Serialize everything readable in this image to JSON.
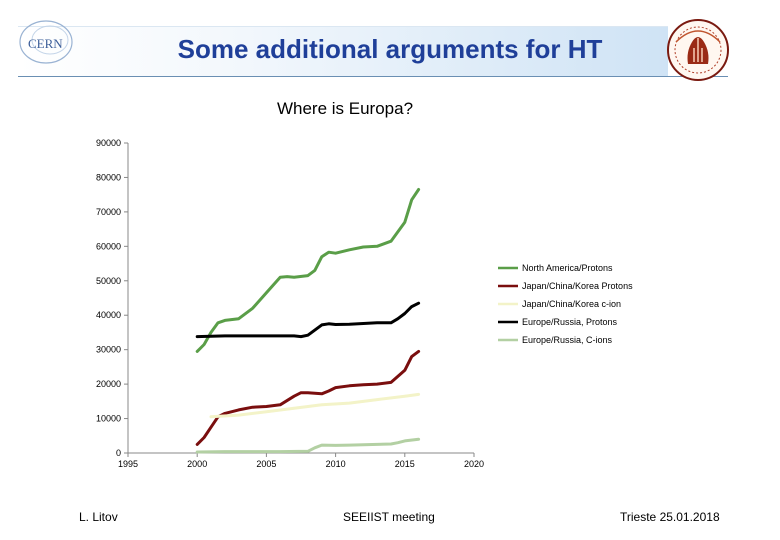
{
  "header": {
    "title": "Some additional arguments for HT",
    "left_logo_text": "CERN",
    "right_logo": "university-seal"
  },
  "footer": {
    "author": "L. Litov",
    "event": "SEEIIST meeting",
    "place_date": "Trieste 25.01.2018"
  },
  "colors": {
    "title": "#1f3f99",
    "north_america": "#5a9e48",
    "japan_protons": "#7a0e0e",
    "japan_cions": "#f3f3c8",
    "europe_protons": "#000000",
    "europe_cions": "#b3d0a3"
  },
  "chart_data": {
    "type": "line",
    "title": "Where is Europa?",
    "xlabel": "",
    "ylabel": "",
    "xlim": [
      1995,
      2020
    ],
    "ylim": [
      0,
      90000
    ],
    "x_ticks": [
      1995,
      2000,
      2005,
      2010,
      2015,
      2020
    ],
    "y_ticks": [
      0,
      10000,
      20000,
      30000,
      40000,
      50000,
      60000,
      70000,
      80000,
      90000
    ],
    "legend_position": "right",
    "grid": false,
    "series": [
      {
        "name": "North America/Protons",
        "color": "#5a9e48",
        "x": [
          2000,
          2000.5,
          2001,
          2001.5,
          2002,
          2003,
          2004,
          2005,
          2006,
          2006.5,
          2007,
          2008,
          2008.5,
          2009,
          2009.5,
          2010,
          2011,
          2012,
          2013,
          2014,
          2015,
          2015.5,
          2016
        ],
        "y": [
          29500,
          31500,
          35000,
          37800,
          38500,
          39000,
          42000,
          46500,
          51000,
          51200,
          51000,
          51500,
          53000,
          57000,
          58300,
          58000,
          59000,
          59800,
          60000,
          61500,
          67000,
          73500,
          76500
        ]
      },
      {
        "name": "Japan/China/Korea Protons",
        "color": "#7a0e0e",
        "x": [
          2000,
          2000.5,
          2001,
          2001.5,
          2002,
          2003,
          2004,
          2005,
          2006,
          2007,
          2007.5,
          2008,
          2009,
          2009.5,
          2010,
          2011,
          2012,
          2013,
          2014,
          2015,
          2015.5,
          2016
        ],
        "y": [
          2500,
          4500,
          7500,
          10500,
          11500,
          12500,
          13300,
          13500,
          14000,
          16500,
          17500,
          17500,
          17200,
          18000,
          19000,
          19500,
          19800,
          20000,
          20500,
          24000,
          28000,
          29500
        ]
      },
      {
        "name": "Japan/China/Korea c-ion",
        "color": "#f3f3c8",
        "x": [
          2001,
          2003,
          2005,
          2007,
          2009,
          2011,
          2013,
          2015,
          2016
        ],
        "y": [
          10500,
          11000,
          12000,
          13000,
          14000,
          14500,
          15500,
          16500,
          17000
        ]
      },
      {
        "name": "Europe/Russia, Protons",
        "color": "#000000",
        "x": [
          2000,
          2002,
          2004,
          2006,
          2007,
          2007.5,
          2008,
          2009,
          2009.5,
          2010,
          2011,
          2012,
          2013,
          2014,
          2014.5,
          2015,
          2015.5,
          2016
        ],
        "y": [
          33800,
          34000,
          34000,
          34000,
          34000,
          33800,
          34200,
          37200,
          37500,
          37300,
          37400,
          37600,
          37800,
          37800,
          39000,
          40500,
          42500,
          43500
        ]
      },
      {
        "name": "Europe/Russia, C-ions",
        "color": "#b3d0a3",
        "x": [
          2000,
          2002,
          2004,
          2006,
          2008,
          2008.5,
          2009,
          2010,
          2011,
          2012,
          2013,
          2014,
          2014.5,
          2015,
          2016
        ],
        "y": [
          300,
          400,
          400,
          400,
          500,
          1500,
          2300,
          2200,
          2300,
          2400,
          2500,
          2600,
          3000,
          3500,
          4000
        ]
      }
    ]
  }
}
